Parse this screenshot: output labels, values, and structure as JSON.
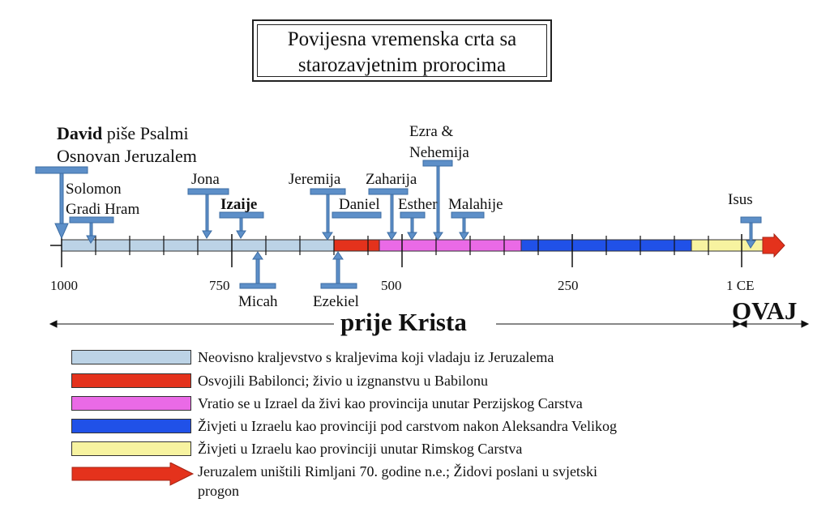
{
  "title": {
    "line1": "Povijesna vremenska crta sa",
    "line2": "starozavjetnim prorocima"
  },
  "axis": {
    "ticks": [
      "1000",
      "750",
      "500",
      "250",
      "1 CE"
    ]
  },
  "era": {
    "bc_label": "prije Krista",
    "ad_label": "OVAJ"
  },
  "events": {
    "david_name": "David",
    "david_rest": " piše Psalmi",
    "jerusalem": "Osnovan Jeruzalem",
    "solomon_line1": "Solomon",
    "solomon_line2": "Gradi Hram",
    "jona": "Jona",
    "izaije": "Izaije",
    "micah": "Micah",
    "jeremija": "Jeremija",
    "ezekiel": "Ezekiel",
    "daniel": "Daniel",
    "zaharija": "Zaharija",
    "esther": "Esther",
    "ezra_line1": "Ezra &",
    "ezra_line2": "Nehemija",
    "malahije": "Malahije",
    "isus": "Isus"
  },
  "legend": [
    {
      "text": "Neovisno kraljevstvo s kraljevima koji vladaju iz Jeruzalema",
      "color": "#bcd3e6"
    },
    {
      "text": "Osvojili Babilonci; živio u izgnanstvu u Babilonu",
      "color": "#e4321c"
    },
    {
      "text": "Vratio se u Izrael da živi kao provincija unutar Perzijskog Carstva",
      "color": "#ea6ae6"
    },
    {
      "text": "Živjeti u Izraelu kao provinciji pod carstvom nakon Aleksandra Velikog",
      "color": "#2051e8"
    },
    {
      "text": "Živjeti u Izraelu kao provinciji unutar Rimskog Carstva",
      "color": "#f7f3a0"
    },
    {
      "text": "Jeruzalem uništili Rimljani 70. godine n.e.; Židovi poslani u svjetski",
      "text2": "progon",
      "color": "#e4321c"
    }
  ],
  "colors": {
    "marker": "#5d8fc8",
    "marker_stroke": "#3d6da3"
  }
}
